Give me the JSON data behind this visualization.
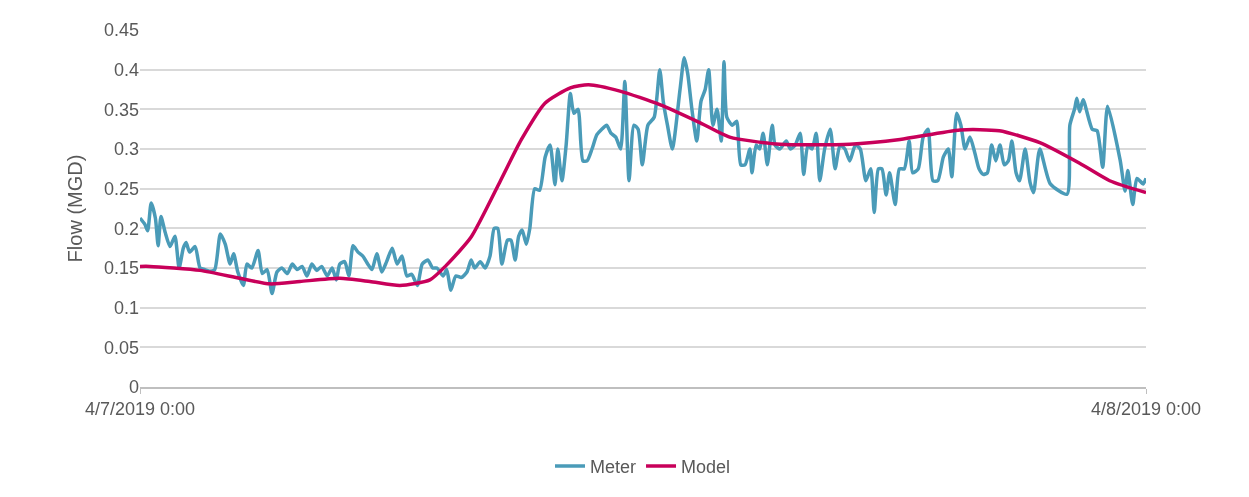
{
  "chart_data": {
    "type": "line",
    "ylabel": "Flow (MGD)",
    "xlim": [
      "2019-04-07T00:00",
      "2019-04-08T00:00"
    ],
    "xticks": [
      {
        "value": "2019-04-07T00:00",
        "label": "4/7/2019 0:00"
      },
      {
        "value": "2019-04-08T00:00",
        "label": "4/8/2019 0:00"
      }
    ],
    "ylim": [
      0,
      0.45
    ],
    "yticks": [
      0,
      0.05,
      0.1,
      0.15,
      0.2,
      0.25,
      0.3,
      0.35,
      0.4,
      0.45
    ],
    "grid": "y",
    "legend": "bottom",
    "marker": "none",
    "line_style": "solid",
    "series": [
      {
        "name": "Meter",
        "color": "#4a9bb8",
        "x": [
          "2019-04-07T00:00",
          "2019-04-07T00:07",
          "2019-04-07T00:11",
          "2019-04-07T00:16",
          "2019-04-07T00:22",
          "2019-04-07T00:26",
          "2019-04-07T00:30",
          "2019-04-07T00:36",
          "2019-04-07T00:43",
          "2019-04-07T00:50",
          "2019-04-07T00:56",
          "2019-04-07T01:02",
          "2019-04-07T01:06",
          "2019-04-07T01:11",
          "2019-04-07T01:19",
          "2019-04-07T01:26",
          "2019-04-07T01:33",
          "2019-04-07T01:40",
          "2019-04-07T01:47",
          "2019-04-07T01:55",
          "2019-04-07T02:02",
          "2019-04-07T02:09",
          "2019-04-07T02:14",
          "2019-04-07T02:20",
          "2019-04-07T02:28",
          "2019-04-07T02:33",
          "2019-04-07T02:40",
          "2019-04-07T02:49",
          "2019-04-07T02:55",
          "2019-04-07T03:02",
          "2019-04-07T03:09",
          "2019-04-07T03:16",
          "2019-04-07T03:23",
          "2019-04-07T03:31",
          "2019-04-07T03:38",
          "2019-04-07T03:45",
          "2019-04-07T03:52",
          "2019-04-07T03:59",
          "2019-04-07T04:06",
          "2019-04-07T04:13",
          "2019-04-07T04:20",
          "2019-04-07T04:28",
          "2019-04-07T04:35",
          "2019-04-07T04:41",
          "2019-04-07T04:46",
          "2019-04-07T04:53",
          "2019-04-07T04:59",
          "2019-04-07T05:05",
          "2019-04-07T05:12",
          "2019-04-07T05:19",
          "2019-04-07T05:26",
          "2019-04-07T05:32",
          "2019-04-07T05:39",
          "2019-04-07T05:46",
          "2019-04-07T05:53",
          "2019-04-07T06:01",
          "2019-04-07T06:08",
          "2019-04-07T06:15",
          "2019-04-07T06:22",
          "2019-04-07T06:29",
          "2019-04-07T06:37",
          "2019-04-07T06:44",
          "2019-04-07T06:52",
          "2019-04-07T06:59",
          "2019-04-07T07:05",
          "2019-04-07T07:14",
          "2019-04-07T07:19",
          "2019-04-07T07:25",
          "2019-04-07T07:32",
          "2019-04-07T07:40",
          "2019-04-07T07:48",
          "2019-04-07T07:54",
          "2019-04-07T07:59",
          "2019-04-07T08:07",
          "2019-04-07T08:14",
          "2019-04-07T08:21",
          "2019-04-07T08:27",
          "2019-04-07T08:32",
          "2019-04-07T08:38",
          "2019-04-07T08:46",
          "2019-04-07T08:51",
          "2019-04-07T08:57",
          "2019-04-07T09:02",
          "2019-04-07T09:07",
          "2019-04-07T09:13",
          "2019-04-07T09:18",
          "2019-04-07T09:25",
          "2019-04-07T09:32",
          "2019-04-07T09:40",
          "2019-04-07T09:47",
          "2019-04-07T09:54",
          "2019-04-07T09:58",
          "2019-04-07T10:04",
          "2019-04-07T10:10",
          "2019-04-07T10:16",
          "2019-04-07T10:21",
          "2019-04-07T10:27",
          "2019-04-07T10:34",
          "2019-04-07T10:40",
          "2019-04-07T10:47",
          "2019-04-07T10:54",
          "2019-04-07T11:01",
          "2019-04-07T11:08",
          "2019-04-07T11:14",
          "2019-04-07T11:21",
          "2019-04-07T11:28",
          "2019-04-07T11:34",
          "2019-04-07T11:40",
          "2019-04-07T11:47",
          "2019-04-07T11:53",
          "2019-04-07T11:59",
          "2019-04-07T12:07",
          "2019-04-07T12:16",
          "2019-04-07T12:24",
          "2019-04-07T12:29",
          "2019-04-07T12:35",
          "2019-04-07T12:42",
          "2019-04-07T12:53",
          "2019-04-07T12:59",
          "2019-04-07T13:04",
          "2019-04-07T13:10",
          "2019-04-07T13:17",
          "2019-04-07T13:23",
          "2019-04-07T13:29",
          "2019-04-07T13:34",
          "2019-04-07T13:40",
          "2019-04-07T13:46",
          "2019-04-07T13:52",
          "2019-04-07T13:56",
          "2019-04-07T14:00",
          "2019-04-07T14:08",
          "2019-04-07T14:14",
          "2019-04-07T14:20",
          "2019-04-07T14:26",
          "2019-04-07T14:33",
          "2019-04-07T14:36",
          "2019-04-07T14:42",
          "2019-04-07T14:47",
          "2019-04-07T14:52",
          "2019-04-07T14:58",
          "2019-04-07T15:05",
          "2019-04-07T15:09",
          "2019-04-07T15:16",
          "2019-04-07T15:25",
          "2019-04-07T15:31",
          "2019-04-07T15:38",
          "2019-04-07T15:45",
          "2019-04-07T15:50",
          "2019-04-07T15:56",
          "2019-04-07T16:02",
          "2019-04-07T16:08",
          "2019-04-07T16:13",
          "2019-04-07T16:20",
          "2019-04-07T16:28",
          "2019-04-07T16:35",
          "2019-04-07T16:42",
          "2019-04-07T16:49",
          "2019-04-07T16:56",
          "2019-04-07T17:04",
          "2019-04-07T17:11",
          "2019-04-07T17:19",
          "2019-04-07T17:26",
          "2019-04-07T17:31",
          "2019-04-07T17:37",
          "2019-04-07T17:42",
          "2019-04-07T17:48",
          "2019-04-07T17:53",
          "2019-04-07T18:01",
          "2019-04-07T18:07",
          "2019-04-07T18:14",
          "2019-04-07T18:21",
          "2019-04-07T18:26",
          "2019-04-07T18:34",
          "2019-04-07T18:41",
          "2019-04-07T18:48",
          "2019-04-07T18:55",
          "2019-04-07T19:02",
          "2019-04-07T19:10",
          "2019-04-07T19:17",
          "2019-04-07T19:22",
          "2019-04-07T19:29",
          "2019-04-07T19:35",
          "2019-04-07T19:41",
          "2019-04-07T19:48",
          "2019-04-07T19:55",
          "2019-04-07T20:01",
          "2019-04-07T20:07",
          "2019-04-07T20:13",
          "2019-04-07T20:19",
          "2019-04-07T20:25",
          "2019-04-07T20:31",
          "2019-04-07T20:37",
          "2019-04-07T20:43",
          "2019-04-07T20:48",
          "2019-04-07T20:54",
          "2019-04-07T20:59",
          "2019-04-07T21:07",
          "2019-04-07T21:14",
          "2019-04-07T21:19",
          "2019-04-07T21:28",
          "2019-04-07T21:43",
          "2019-04-07T22:07",
          "2019-04-07T22:11",
          "2019-04-07T22:18",
          "2019-04-07T22:21",
          "2019-04-07T22:25",
          "2019-04-07T22:30",
          "2019-04-07T22:43",
          "2019-04-07T22:50",
          "2019-04-07T22:58",
          "2019-04-07T23:05",
          "2019-04-07T23:23",
          "2019-04-07T23:30",
          "2019-04-07T23:34",
          "2019-04-07T23:41",
          "2019-04-07T23:47",
          "2019-04-07T23:56",
          "2019-04-08T00:00"
        ],
        "values": [
          0.213,
          0.205,
          0.197,
          0.232,
          0.213,
          0.178,
          0.215,
          0.195,
          0.177,
          0.19,
          0.15,
          0.175,
          0.182,
          0.17,
          0.177,
          0.15,
          0.148,
          0.146,
          0.148,
          0.193,
          0.18,
          0.155,
          0.168,
          0.145,
          0.128,
          0.155,
          0.15,
          0.172,
          0.143,
          0.148,
          0.118,
          0.145,
          0.15,
          0.143,
          0.155,
          0.148,
          0.152,
          0.14,
          0.155,
          0.147,
          0.152,
          0.14,
          0.15,
          0.135,
          0.155,
          0.158,
          0.14,
          0.178,
          0.17,
          0.165,
          0.155,
          0.148,
          0.168,
          0.145,
          0.158,
          0.175,
          0.155,
          0.165,
          0.14,
          0.142,
          0.128,
          0.155,
          0.16,
          0.15,
          0.15,
          0.14,
          0.148,
          0.122,
          0.14,
          0.138,
          0.145,
          0.16,
          0.15,
          0.158,
          0.15,
          0.165,
          0.2,
          0.2,
          0.155,
          0.185,
          0.185,
          0.16,
          0.19,
          0.198,
          0.18,
          0.2,
          0.25,
          0.248,
          0.29,
          0.305,
          0.255,
          0.3,
          0.26,
          0.305,
          0.37,
          0.345,
          0.35,
          0.285,
          0.285,
          0.3,
          0.318,
          0.325,
          0.33,
          0.32,
          0.315,
          0.3,
          0.385,
          0.26,
          0.33,
          0.325,
          0.28,
          0.33,
          0.34,
          0.4,
          0.36,
          0.33,
          0.3,
          0.375,
          0.415,
          0.395,
          0.35,
          0.31,
          0.36,
          0.375,
          0.4,
          0.33,
          0.35,
          0.31,
          0.41,
          0.34,
          0.33,
          0.335,
          0.28,
          0.28,
          0.3,
          0.27,
          0.305,
          0.3,
          0.32,
          0.28,
          0.33,
          0.305,
          0.3,
          0.31,
          0.3,
          0.305,
          0.32,
          0.268,
          0.305,
          0.3,
          0.32,
          0.26,
          0.3,
          0.325,
          0.275,
          0.305,
          0.3,
          0.285,
          0.305,
          0.3,
          0.26,
          0.275,
          0.22,
          0.275,
          0.275,
          0.242,
          0.27,
          0.23,
          0.275,
          0.275,
          0.31,
          0.27,
          0.275,
          0.315,
          0.325,
          0.26,
          0.26,
          0.29,
          0.3,
          0.265,
          0.345,
          0.33,
          0.3,
          0.315,
          0.295,
          0.275,
          0.268,
          0.27,
          0.305,
          0.285,
          0.305,
          0.28,
          0.285,
          0.31,
          0.27,
          0.26,
          0.3,
          0.258,
          0.245,
          0.3,
          0.256,
          0.243,
          0.33,
          0.351,
          0.364,
          0.347,
          0.362,
          0.325,
          0.323,
          0.277,
          0.354,
          0.286,
          0.247,
          0.273,
          0.23,
          0.263,
          0.256,
          0.263
        ]
      },
      {
        "name": "Model",
        "color": "#c8005a",
        "x": [
          "2019-04-07T00:00",
          "2019-04-07T00:14",
          "2019-04-07T01:26",
          "2019-04-07T02:23",
          "2019-04-07T03:06",
          "2019-04-07T03:49",
          "2019-04-07T04:46",
          "2019-04-07T05:29",
          "2019-04-07T06:12",
          "2019-04-07T06:55",
          "2019-04-07T07:18",
          "2019-04-07T07:54",
          "2019-04-07T08:36",
          "2019-04-07T09:06",
          "2019-04-07T09:40",
          "2019-04-07T10:16",
          "2019-04-07T10:42",
          "2019-04-07T11:27",
          "2019-04-07T12:24",
          "2019-04-07T13:22",
          "2019-04-07T14:04",
          "2019-04-07T15:16",
          "2019-04-07T16:56",
          "2019-04-07T18:08",
          "2019-04-07T19:34",
          "2019-04-07T20:30",
          "2019-04-07T21:28",
          "2019-04-07T22:25",
          "2019-04-07T23:08",
          "2019-04-08T00:00"
        ],
        "values": [
          0.152,
          0.152,
          0.147,
          0.137,
          0.13,
          0.133,
          0.137,
          0.133,
          0.128,
          0.135,
          0.153,
          0.189,
          0.26,
          0.312,
          0.358,
          0.377,
          0.381,
          0.373,
          0.356,
          0.333,
          0.315,
          0.306,
          0.306,
          0.312,
          0.324,
          0.323,
          0.308,
          0.282,
          0.26,
          0.245
        ]
      }
    ]
  }
}
